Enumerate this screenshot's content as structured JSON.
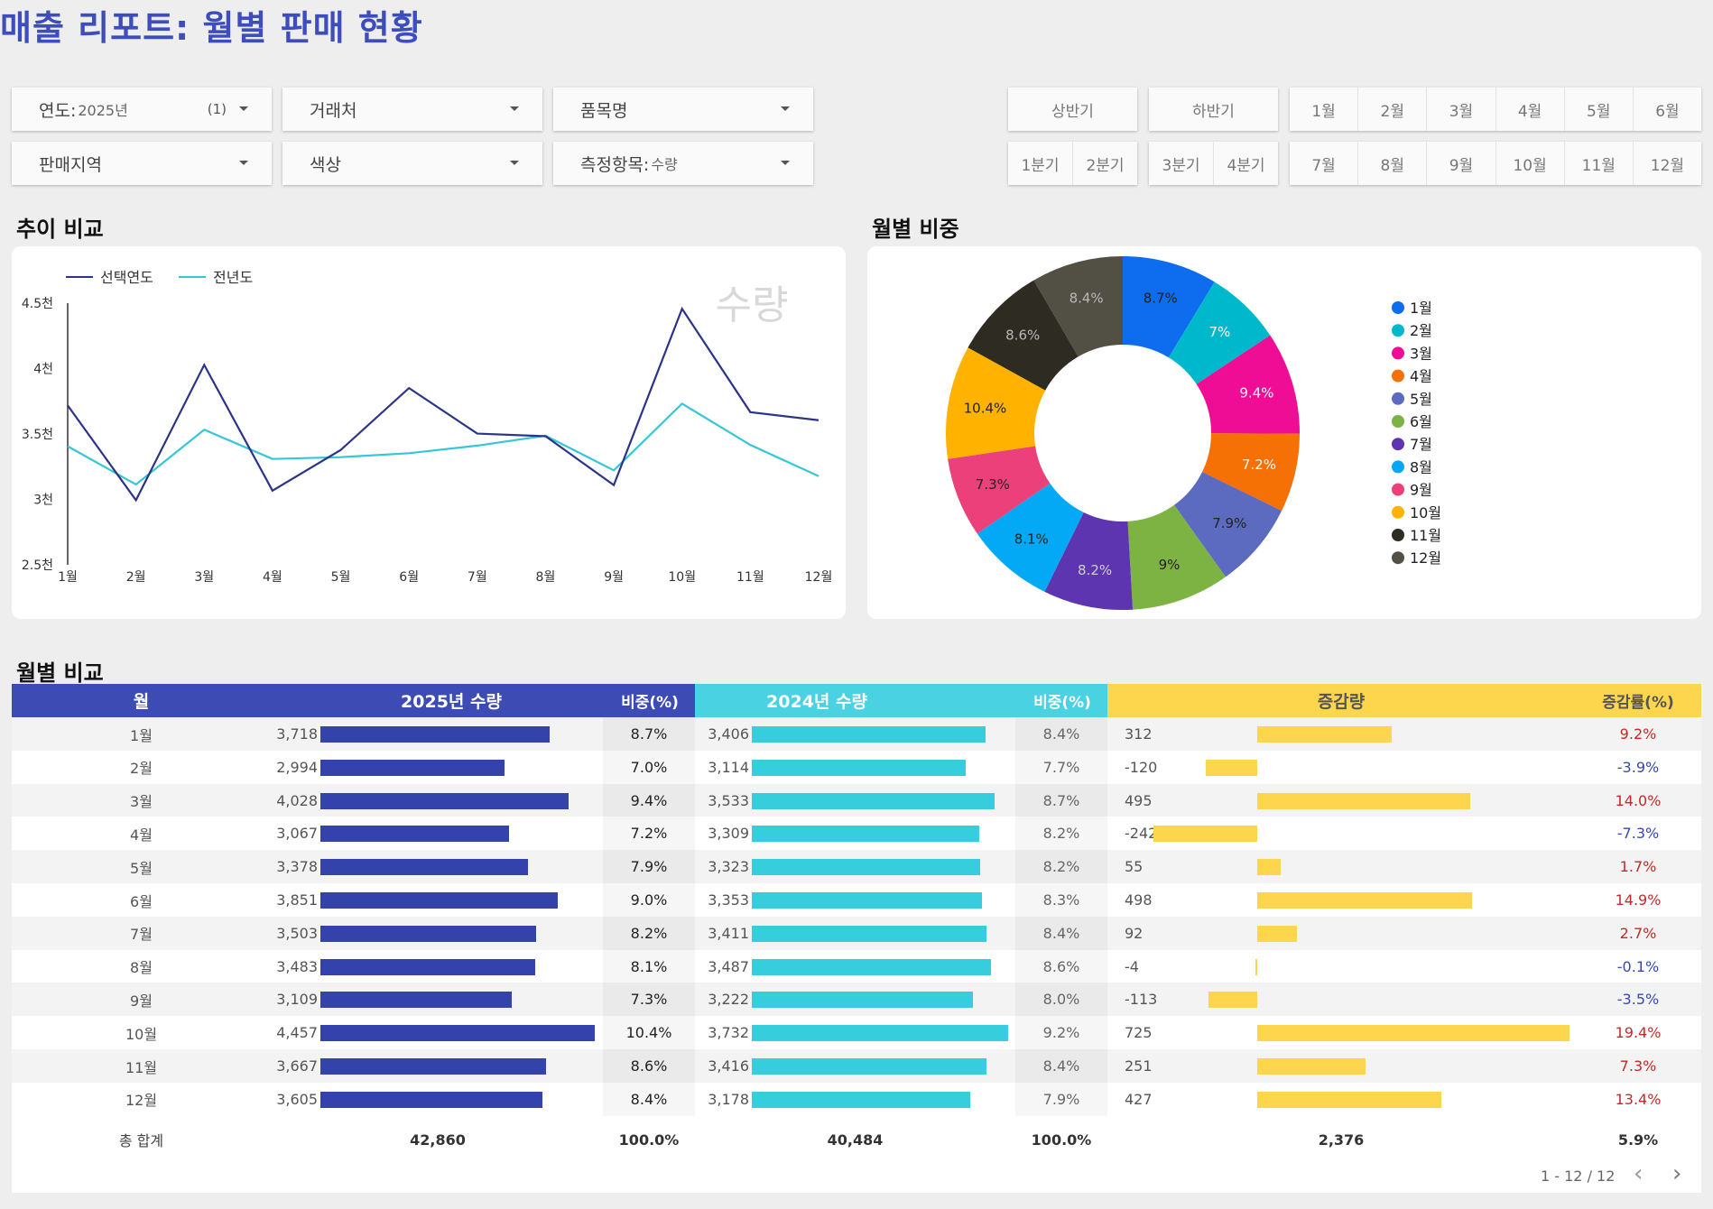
{
  "title": "매출 리포트: 월별 판매 현황",
  "filters": [
    {
      "label": "연도:",
      "value": "2025년",
      "count": "(1)"
    },
    {
      "label": "거래처",
      "value": "",
      "count": ""
    },
    {
      "label": "품목명",
      "value": "",
      "count": ""
    },
    {
      "label": "판매지역",
      "value": "",
      "count": ""
    },
    {
      "label": "색상",
      "value": "",
      "count": ""
    },
    {
      "label": "측정항목:",
      "value": "수량",
      "count": ""
    }
  ],
  "period_buttons": {
    "half": [
      "상반기",
      "하반기"
    ],
    "quarters": [
      "1분기",
      "2분기",
      "3분기",
      "4분기"
    ],
    "months_row1": [
      "1월",
      "2월",
      "3월",
      "4월",
      "5월",
      "6월"
    ],
    "months_row2": [
      "7월",
      "8월",
      "9월",
      "10월",
      "11월",
      "12월"
    ]
  },
  "sections": {
    "trend": "추이 비교",
    "share": "월별 비중",
    "compare": "월별 비교"
  },
  "colors": {
    "accent": "#3d4dbd",
    "current": "#2b3488",
    "previous": "#35c6d8",
    "bar_current": "#3442ab",
    "bar_previous": "#36cddc",
    "bar_diff": "#fdd64e",
    "pos": "#c62828",
    "neg": "#3949ab"
  },
  "chart_data": [
    {
      "type": "line",
      "watermark": "수량",
      "x": [
        "1월",
        "2월",
        "3월",
        "4월",
        "5월",
        "6월",
        "7월",
        "8월",
        "9월",
        "10월",
        "11월",
        "12월"
      ],
      "yticks": [
        "4.5천",
        "4천",
        "3.5천",
        "3천",
        "2.5천"
      ],
      "ylim": [
        2500,
        4500
      ],
      "legend_position": "top-left",
      "series": [
        {
          "name": "선택연도",
          "color": "#2b3488",
          "values": [
            3718,
            2994,
            4028,
            3067,
            3378,
            3851,
            3503,
            3483,
            3109,
            4457,
            3667,
            3605
          ]
        },
        {
          "name": "전년도",
          "color": "#35c6d8",
          "values": [
            3406,
            3114,
            3533,
            3309,
            3323,
            3353,
            3411,
            3487,
            3222,
            3732,
            3416,
            3178
          ]
        }
      ]
    },
    {
      "type": "pie",
      "donut": true,
      "legend_position": "right",
      "slices": [
        {
          "label": "1월",
          "value": 8.7,
          "text": "8.7%",
          "color": "#0e6cee"
        },
        {
          "label": "2월",
          "value": 7.0,
          "text": "7%",
          "color": "#00b8cc"
        },
        {
          "label": "3월",
          "value": 9.4,
          "text": "9.4%",
          "color": "#ef0d96"
        },
        {
          "label": "4월",
          "value": 7.2,
          "text": "7.2%",
          "color": "#f57005"
        },
        {
          "label": "5월",
          "value": 7.9,
          "text": "7.9%",
          "color": "#5c6bc0"
        },
        {
          "label": "6월",
          "value": 9.0,
          "text": "9%",
          "color": "#7cb342"
        },
        {
          "label": "7월",
          "value": 8.2,
          "text": "8.2%",
          "color": "#5e35b1"
        },
        {
          "label": "8월",
          "value": 8.1,
          "text": "8.1%",
          "color": "#03a9f4"
        },
        {
          "label": "9월",
          "value": 7.3,
          "text": "7.3%",
          "color": "#ec407a"
        },
        {
          "label": "10월",
          "value": 10.4,
          "text": "10.4%",
          "color": "#ffb300"
        },
        {
          "label": "11월",
          "value": 8.6,
          "text": "8.6%",
          "color": "#2e2b23"
        },
        {
          "label": "12월",
          "value": 8.4,
          "text": "8.4%",
          "color": "#525044"
        }
      ]
    },
    {
      "type": "table",
      "headers": {
        "month": "월",
        "cur": "2025년 수량",
        "cur_share": "비중(%)",
        "prev": "2024년 수량",
        "prev_share": "비중(%)",
        "diff": "증감량",
        "rate": "증감률(%)"
      },
      "bar_max": 4457,
      "diff_max": 725,
      "rows": [
        {
          "month": "1월",
          "cur": 3718,
          "cur_txt": "3,718",
          "cur_share": "8.7%",
          "prev": 3406,
          "prev_txt": "3,406",
          "prev_share": "8.4%",
          "diff": 312,
          "diff_txt": "312",
          "rate": "9.2%"
        },
        {
          "month": "2월",
          "cur": 2994,
          "cur_txt": "2,994",
          "cur_share": "7.0%",
          "prev": 3114,
          "prev_txt": "3,114",
          "prev_share": "7.7%",
          "diff": -120,
          "diff_txt": "-120",
          "rate": "-3.9%"
        },
        {
          "month": "3월",
          "cur": 4028,
          "cur_txt": "4,028",
          "cur_share": "9.4%",
          "prev": 3533,
          "prev_txt": "3,533",
          "prev_share": "8.7%",
          "diff": 495,
          "diff_txt": "495",
          "rate": "14.0%"
        },
        {
          "month": "4월",
          "cur": 3067,
          "cur_txt": "3,067",
          "cur_share": "7.2%",
          "prev": 3309,
          "prev_txt": "3,309",
          "prev_share": "8.2%",
          "diff": -242,
          "diff_txt": "-242",
          "rate": "-7.3%"
        },
        {
          "month": "5월",
          "cur": 3378,
          "cur_txt": "3,378",
          "cur_share": "7.9%",
          "prev": 3323,
          "prev_txt": "3,323",
          "prev_share": "8.2%",
          "diff": 55,
          "diff_txt": "55",
          "rate": "1.7%"
        },
        {
          "month": "6월",
          "cur": 3851,
          "cur_txt": "3,851",
          "cur_share": "9.0%",
          "prev": 3353,
          "prev_txt": "3,353",
          "prev_share": "8.3%",
          "diff": 498,
          "diff_txt": "498",
          "rate": "14.9%"
        },
        {
          "month": "7월",
          "cur": 3503,
          "cur_txt": "3,503",
          "cur_share": "8.2%",
          "prev": 3411,
          "prev_txt": "3,411",
          "prev_share": "8.4%",
          "diff": 92,
          "diff_txt": "92",
          "rate": "2.7%"
        },
        {
          "month": "8월",
          "cur": 3483,
          "cur_txt": "3,483",
          "cur_share": "8.1%",
          "prev": 3487,
          "prev_txt": "3,487",
          "prev_share": "8.6%",
          "diff": -4,
          "diff_txt": "-4",
          "rate": "-0.1%"
        },
        {
          "month": "9월",
          "cur": 3109,
          "cur_txt": "3,109",
          "cur_share": "7.3%",
          "prev": 3222,
          "prev_txt": "3,222",
          "prev_share": "8.0%",
          "diff": -113,
          "diff_txt": "-113",
          "rate": "-3.5%"
        },
        {
          "month": "10월",
          "cur": 4457,
          "cur_txt": "4,457",
          "cur_share": "10.4%",
          "prev": 3732,
          "prev_txt": "3,732",
          "prev_share": "9.2%",
          "diff": 725,
          "diff_txt": "725",
          "rate": "19.4%"
        },
        {
          "month": "11월",
          "cur": 3667,
          "cur_txt": "3,667",
          "cur_share": "8.6%",
          "prev": 3416,
          "prev_txt": "3,416",
          "prev_share": "8.4%",
          "diff": 251,
          "diff_txt": "251",
          "rate": "7.3%"
        },
        {
          "month": "12월",
          "cur": 3605,
          "cur_txt": "3,605",
          "cur_share": "8.4%",
          "prev": 3178,
          "prev_txt": "3,178",
          "prev_share": "7.9%",
          "diff": 427,
          "diff_txt": "427",
          "rate": "13.4%"
        }
      ],
      "totals": {
        "label": "총 합계",
        "cur": "42,860",
        "cur_share": "100.0%",
        "prev": "40,484",
        "prev_share": "100.0%",
        "diff": "2,376",
        "rate": "5.9%"
      }
    }
  ],
  "pager": {
    "text": "1 - 12 / 12",
    "prev_icon": "chevron-left-icon",
    "next_icon": "chevron-right-icon"
  }
}
